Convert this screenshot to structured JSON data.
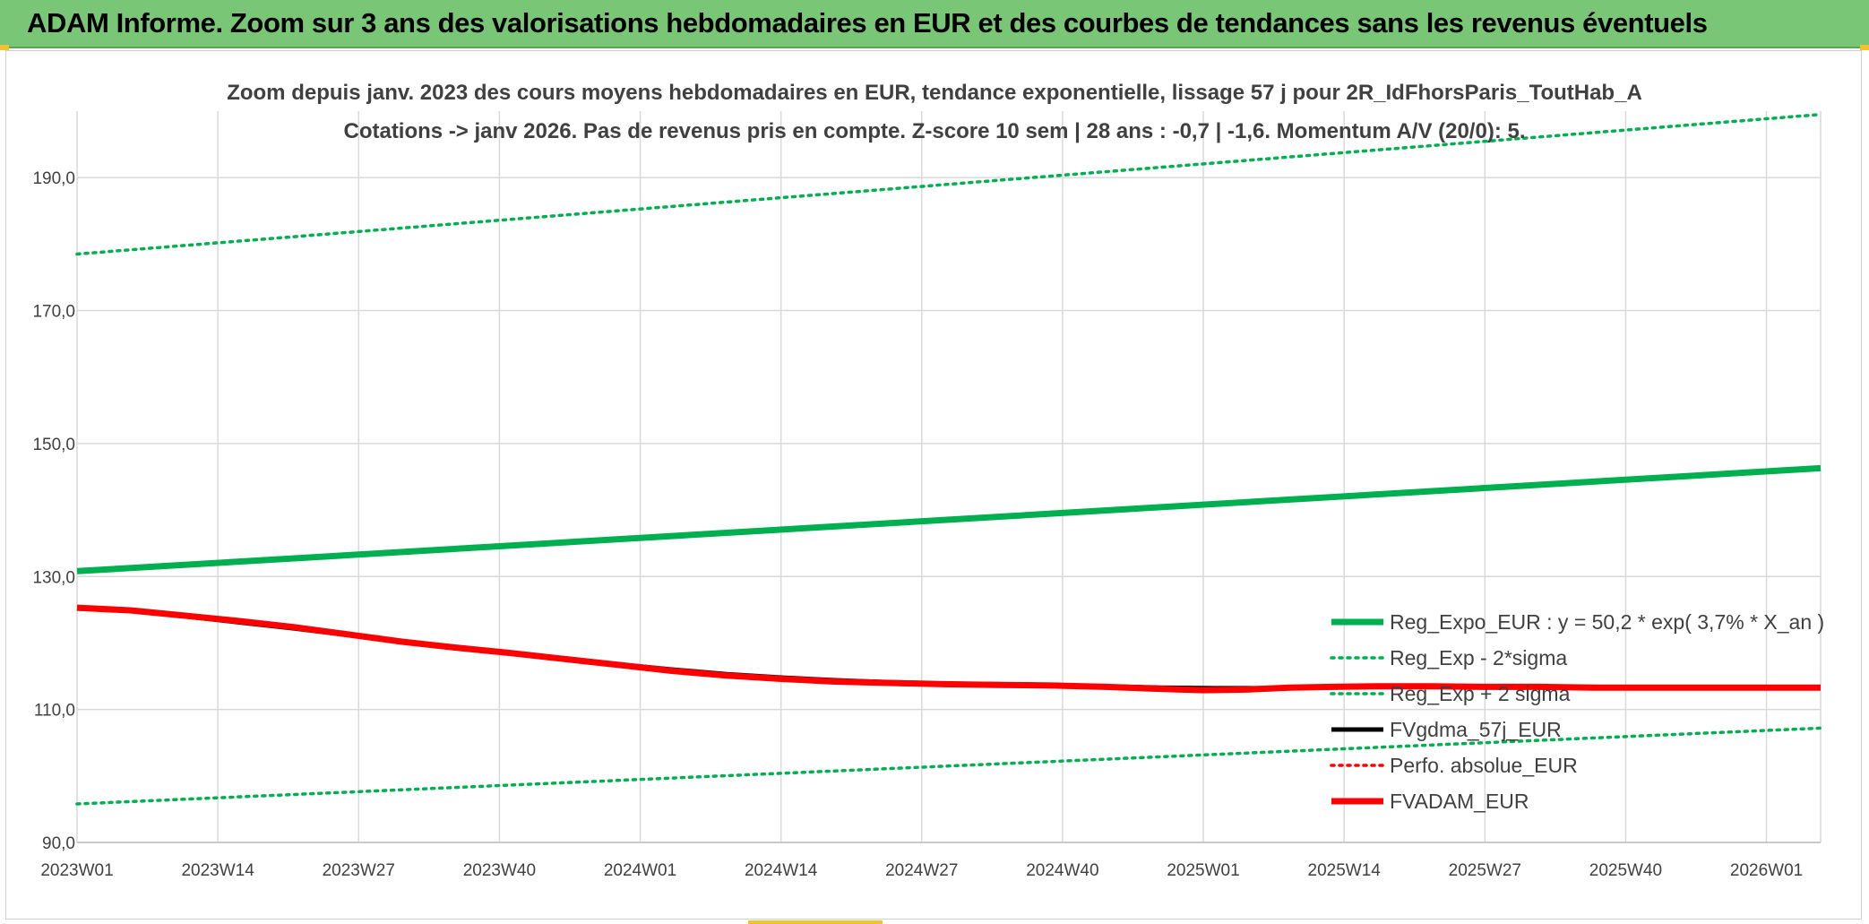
{
  "header": {
    "title": "ADAM Informe. Zoom sur 3 ans des valorisations hebdomadaires en EUR et des courbes de tendances sans les revenus éventuels"
  },
  "colors": {
    "header_bg": "#79c776",
    "regression": "#00b050",
    "fvgdma": "#000000",
    "perfo": "#ff0000",
    "fvadam": "#ff0000",
    "grid": "#d9d9d9",
    "text": "#404040"
  },
  "chart_data": {
    "type": "line",
    "title": "Zoom depuis janv. 2023 des cours moyens hebdomadaires en EUR, tendance exponentielle, lissage 57 j pour 2R_IdFhorsParis_ToutHab_A",
    "subtitle": "Cotations -> janv 2026. Pas de revenus pris en compte. Z-score 10 sem | 28 ans : -0,7 | -1,6. Momentum A/V (20/0): 5.",
    "xlabel": "",
    "ylabel": "",
    "x_tick_labels": [
      "2023W01",
      "2023W14",
      "2023W27",
      "2023W40",
      "2024W01",
      "2024W14",
      "2024W27",
      "2024W40",
      "2025W01",
      "2025W14",
      "2025W27",
      "2025W40",
      "2026W01"
    ],
    "x_weeks_total": 161,
    "x_weeks_tick_step": 13,
    "y_tick_labels": [
      "90,0",
      "110,0",
      "130,0",
      "150,0",
      "170,0",
      "190,0"
    ],
    "ylim": [
      90,
      200
    ],
    "y_ticks": [
      90,
      110,
      130,
      150,
      170,
      190
    ],
    "grid": true,
    "legend_position": "bottom-right",
    "series": [
      {
        "name": "Reg_Expo_EUR : y = 50,2 * exp( 3,7% *  X_an )",
        "color": "#00b050",
        "style": "solid",
        "width": "thick",
        "points": [
          [
            0,
            130.8
          ],
          [
            161,
            146.3
          ]
        ]
      },
      {
        "name": "Reg_Exp - 2*sigma",
        "color": "#00b050",
        "style": "dotted",
        "width": "thin",
        "points": [
          [
            0,
            95.8
          ],
          [
            161,
            107.2
          ]
        ]
      },
      {
        "name": "Reg_Exp + 2 sigma",
        "color": "#00b050",
        "style": "dotted",
        "width": "thin",
        "points": [
          [
            0,
            178.5
          ],
          [
            161,
            199.5
          ]
        ]
      },
      {
        "name": "FVgdma_57j_EUR",
        "color": "#000000",
        "style": "solid",
        "width": "medium",
        "points": [
          [
            0,
            125.2
          ],
          [
            5,
            124.8
          ],
          [
            10,
            124.0
          ],
          [
            15,
            123.1
          ],
          [
            20,
            122.2
          ],
          [
            25,
            121.2
          ],
          [
            30,
            120.1
          ],
          [
            35,
            119.2
          ],
          [
            40,
            118.4
          ],
          [
            45,
            117.7
          ],
          [
            50,
            116.8
          ],
          [
            55,
            116.0
          ],
          [
            60,
            115.3
          ],
          [
            65,
            114.8
          ],
          [
            70,
            114.4
          ],
          [
            75,
            114.1
          ],
          [
            80,
            113.9
          ],
          [
            85,
            113.8
          ],
          [
            90,
            113.7
          ],
          [
            95,
            113.5
          ],
          [
            100,
            113.3
          ],
          [
            105,
            113.2
          ],
          [
            110,
            113.2
          ],
          [
            115,
            113.3
          ],
          [
            120,
            113.4
          ],
          [
            125,
            113.4
          ],
          [
            130,
            113.4
          ],
          [
            135,
            113.4
          ],
          [
            140,
            113.4
          ],
          [
            145,
            113.3
          ],
          [
            150,
            113.3
          ],
          [
            155,
            113.3
          ],
          [
            161,
            113.3
          ]
        ]
      },
      {
        "name": "Perfo. absolue_EUR",
        "color": "#ff0000",
        "style": "dotted",
        "width": "thin",
        "points": []
      },
      {
        "name": "FVADAM_EUR",
        "color": "#ff0000",
        "style": "solid",
        "width": "thick",
        "points": [
          [
            0,
            125.3
          ],
          [
            5,
            124.9
          ],
          [
            10,
            124.1
          ],
          [
            15,
            123.3
          ],
          [
            20,
            122.4
          ],
          [
            25,
            121.3
          ],
          [
            30,
            120.2
          ],
          [
            35,
            119.3
          ],
          [
            40,
            118.5
          ],
          [
            45,
            117.6
          ],
          [
            50,
            116.7
          ],
          [
            55,
            115.8
          ],
          [
            60,
            115.1
          ],
          [
            65,
            114.6
          ],
          [
            70,
            114.2
          ],
          [
            75,
            114.0
          ],
          [
            80,
            113.8
          ],
          [
            85,
            113.7
          ],
          [
            90,
            113.6
          ],
          [
            95,
            113.4
          ],
          [
            100,
            113.1
          ],
          [
            104,
            112.9
          ],
          [
            108,
            113.0
          ],
          [
            112,
            113.3
          ],
          [
            116,
            113.4
          ],
          [
            120,
            113.5
          ],
          [
            125,
            113.5
          ],
          [
            130,
            113.4
          ],
          [
            135,
            113.4
          ],
          [
            140,
            113.3
          ],
          [
            145,
            113.3
          ],
          [
            150,
            113.3
          ],
          [
            155,
            113.3
          ],
          [
            161,
            113.3
          ]
        ]
      }
    ]
  }
}
